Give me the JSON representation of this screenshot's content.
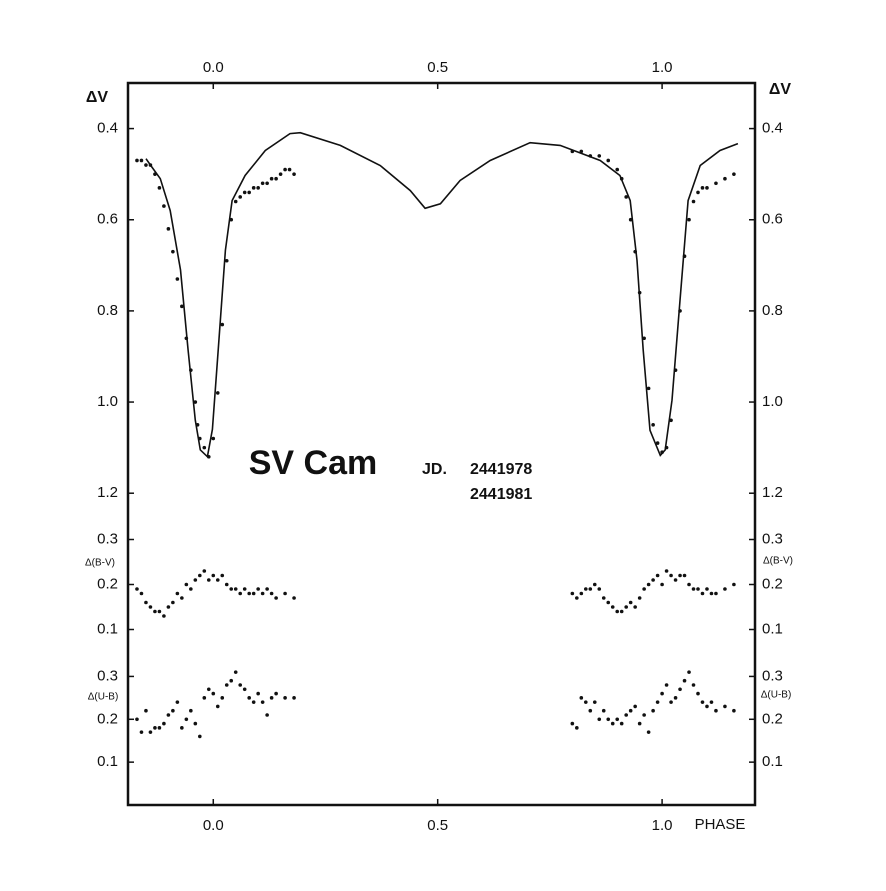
{
  "chart_data": [
    {
      "type": "line",
      "title": "SV Cam",
      "annotations": [
        "JD.",
        "2441978",
        "2441981"
      ],
      "y_label": "ΔV",
      "y_inverted": true,
      "xlim": [
        -0.19,
        1.207
      ],
      "ylim": [
        0.3,
        1.25
      ],
      "xticks": [
        {
          "value": 0,
          "label": "0.0"
        },
        0.5,
        {
          "value": 1,
          "label": "1.0"
        }
      ],
      "yticks": [
        0.4,
        0.6,
        0.8,
        {
          "value": 1,
          "label": "1.0"
        },
        1.2
      ],
      "series": [
        {
          "type": "line",
          "color": "#111",
          "x": [
            -0.15,
            -0.14,
            -0.118,
            -0.096,
            -0.073,
            -0.056,
            -0.04,
            -0.029,
            -0.013,
            -0.002,
            0.011,
            0.027,
            0.042,
            0.071,
            0.116,
            0.171,
            0.194,
            0.283,
            0.372,
            0.439,
            0.472,
            0.506,
            0.55,
            0.617,
            0.706,
            0.773,
            0.862,
            0.906,
            0.929,
            0.944,
            0.958,
            0.973,
            0.996,
            1.007,
            1.022,
            1.04,
            1.058,
            1.085,
            1.129,
            1.169
          ],
          "values": [
            0.466,
            0.48,
            0.51,
            0.58,
            0.71,
            0.886,
            1.04,
            1.105,
            1.12,
            1.06,
            0.886,
            0.667,
            0.558,
            0.503,
            0.448,
            0.411,
            0.409,
            0.437,
            0.481,
            0.536,
            0.575,
            0.565,
            0.514,
            0.47,
            0.431,
            0.437,
            0.47,
            0.503,
            0.558,
            0.689,
            0.886,
            1.062,
            1.117,
            1.105,
            0.996,
            0.777,
            0.558,
            0.481,
            0.448,
            0.433
          ]
        },
        {
          "type": "scatter",
          "color": "#111",
          "x": [
            -0.17,
            -0.16,
            -0.15,
            -0.14,
            -0.13,
            -0.12,
            -0.11,
            -0.1,
            -0.09,
            -0.08,
            -0.07,
            -0.06,
            -0.05,
            -0.04,
            -0.035,
            -0.03,
            -0.02,
            -0.01,
            0.0,
            0.01,
            0.02,
            0.03,
            0.04,
            0.05,
            0.06,
            0.07,
            0.08,
            0.09,
            0.1,
            0.11,
            0.12,
            0.13,
            0.14,
            0.15,
            0.16,
            0.17,
            0.18,
            0.8,
            0.82,
            0.84,
            0.86,
            0.88,
            0.9,
            0.91,
            0.92,
            0.93,
            0.94,
            0.95,
            0.96,
            0.97,
            0.98,
            0.99,
            1.0,
            1.01,
            1.02,
            1.03,
            1.04,
            1.05,
            1.06,
            1.07,
            1.08,
            1.09,
            1.1,
            1.12,
            1.14,
            1.16
          ],
          "values": [
            0.47,
            0.47,
            0.48,
            0.48,
            0.5,
            0.53,
            0.57,
            0.62,
            0.67,
            0.73,
            0.79,
            0.86,
            0.93,
            1.0,
            1.05,
            1.08,
            1.1,
            1.12,
            1.08,
            0.98,
            0.83,
            0.69,
            0.6,
            0.56,
            0.55,
            0.54,
            0.54,
            0.53,
            0.53,
            0.52,
            0.52,
            0.51,
            0.51,
            0.5,
            0.49,
            0.49,
            0.5,
            0.45,
            0.45,
            0.46,
            0.46,
            0.47,
            0.49,
            0.51,
            0.55,
            0.6,
            0.67,
            0.76,
            0.86,
            0.97,
            1.05,
            1.09,
            1.11,
            1.1,
            1.04,
            0.93,
            0.8,
            0.68,
            0.6,
            0.56,
            0.54,
            0.53,
            0.53,
            0.52,
            0.51,
            0.5
          ]
        }
      ]
    },
    {
      "type": "scatter",
      "y_label": "Δ(B-V)",
      "xlim": [
        -0.19,
        1.207
      ],
      "ylim": [
        0.05,
        0.35
      ],
      "yticks": [
        0.1,
        0.2,
        0.3
      ],
      "color": "#111",
      "x": [
        -0.17,
        -0.16,
        -0.15,
        -0.14,
        -0.13,
        -0.12,
        -0.11,
        -0.1,
        -0.09,
        -0.08,
        -0.07,
        -0.06,
        -0.05,
        -0.04,
        -0.03,
        -0.02,
        -0.01,
        0.0,
        0.01,
        0.02,
        0.03,
        0.04,
        0.05,
        0.06,
        0.07,
        0.08,
        0.09,
        0.1,
        0.11,
        0.12,
        0.13,
        0.14,
        0.16,
        0.18,
        0.8,
        0.81,
        0.82,
        0.83,
        0.84,
        0.85,
        0.86,
        0.87,
        0.88,
        0.89,
        0.9,
        0.91,
        0.92,
        0.93,
        0.94,
        0.95,
        0.96,
        0.97,
        0.98,
        0.99,
        1.0,
        1.01,
        1.02,
        1.03,
        1.04,
        1.05,
        1.06,
        1.07,
        1.08,
        1.09,
        1.1,
        1.11,
        1.12,
        1.14,
        1.16
      ],
      "values": [
        0.19,
        0.18,
        0.16,
        0.15,
        0.14,
        0.14,
        0.13,
        0.15,
        0.16,
        0.18,
        0.17,
        0.2,
        0.19,
        0.21,
        0.22,
        0.23,
        0.21,
        0.22,
        0.21,
        0.22,
        0.2,
        0.19,
        0.19,
        0.18,
        0.19,
        0.18,
        0.18,
        0.19,
        0.18,
        0.19,
        0.18,
        0.17,
        0.18,
        0.17,
        0.18,
        0.17,
        0.18,
        0.19,
        0.19,
        0.2,
        0.19,
        0.17,
        0.16,
        0.15,
        0.14,
        0.14,
        0.15,
        0.16,
        0.15,
        0.17,
        0.19,
        0.2,
        0.21,
        0.22,
        0.2,
        0.23,
        0.22,
        0.21,
        0.22,
        0.22,
        0.2,
        0.19,
        0.19,
        0.18,
        0.19,
        0.18,
        0.18,
        0.19,
        0.2
      ]
    },
    {
      "type": "scatter",
      "y_label": "Δ(U-B)",
      "x_label": "PHASE",
      "xlim": [
        -0.19,
        1.207
      ],
      "ylim": [
        0,
        0.35
      ],
      "yticks": [
        0.1,
        0.2,
        0.3
      ],
      "color": "#111",
      "xticks": [
        {
          "value": 0,
          "label": "0.0"
        },
        0.5,
        {
          "value": 1,
          "label": "1.0"
        }
      ],
      "x": [
        -0.17,
        -0.16,
        -0.15,
        -0.14,
        -0.13,
        -0.12,
        -0.11,
        -0.1,
        -0.09,
        -0.08,
        -0.07,
        -0.06,
        -0.05,
        -0.04,
        -0.03,
        -0.02,
        -0.01,
        0.0,
        0.01,
        0.02,
        0.03,
        0.04,
        0.05,
        0.06,
        0.07,
        0.08,
        0.09,
        0.1,
        0.11,
        0.12,
        0.13,
        0.14,
        0.16,
        0.18,
        0.8,
        0.81,
        0.82,
        0.83,
        0.84,
        0.85,
        0.86,
        0.87,
        0.88,
        0.89,
        0.9,
        0.91,
        0.92,
        0.93,
        0.94,
        0.95,
        0.96,
        0.97,
        0.98,
        0.99,
        1.0,
        1.01,
        1.02,
        1.03,
        1.04,
        1.05,
        1.06,
        1.07,
        1.08,
        1.09,
        1.1,
        1.11,
        1.12,
        1.14,
        1.16
      ],
      "values": [
        0.2,
        0.17,
        0.22,
        0.17,
        0.18,
        0.18,
        0.19,
        0.21,
        0.22,
        0.24,
        0.18,
        0.2,
        0.22,
        0.19,
        0.16,
        0.25,
        0.27,
        0.26,
        0.23,
        0.25,
        0.28,
        0.29,
        0.31,
        0.28,
        0.27,
        0.25,
        0.24,
        0.26,
        0.24,
        0.21,
        0.25,
        0.26,
        0.25,
        0.25,
        0.19,
        0.18,
        0.25,
        0.24,
        0.22,
        0.24,
        0.2,
        0.22,
        0.2,
        0.19,
        0.2,
        0.19,
        0.21,
        0.22,
        0.23,
        0.19,
        0.21,
        0.17,
        0.22,
        0.24,
        0.26,
        0.28,
        0.24,
        0.25,
        0.27,
        0.29,
        0.31,
        0.28,
        0.26,
        0.24,
        0.23,
        0.24,
        0.22,
        0.23,
        0.22
      ]
    }
  ]
}
